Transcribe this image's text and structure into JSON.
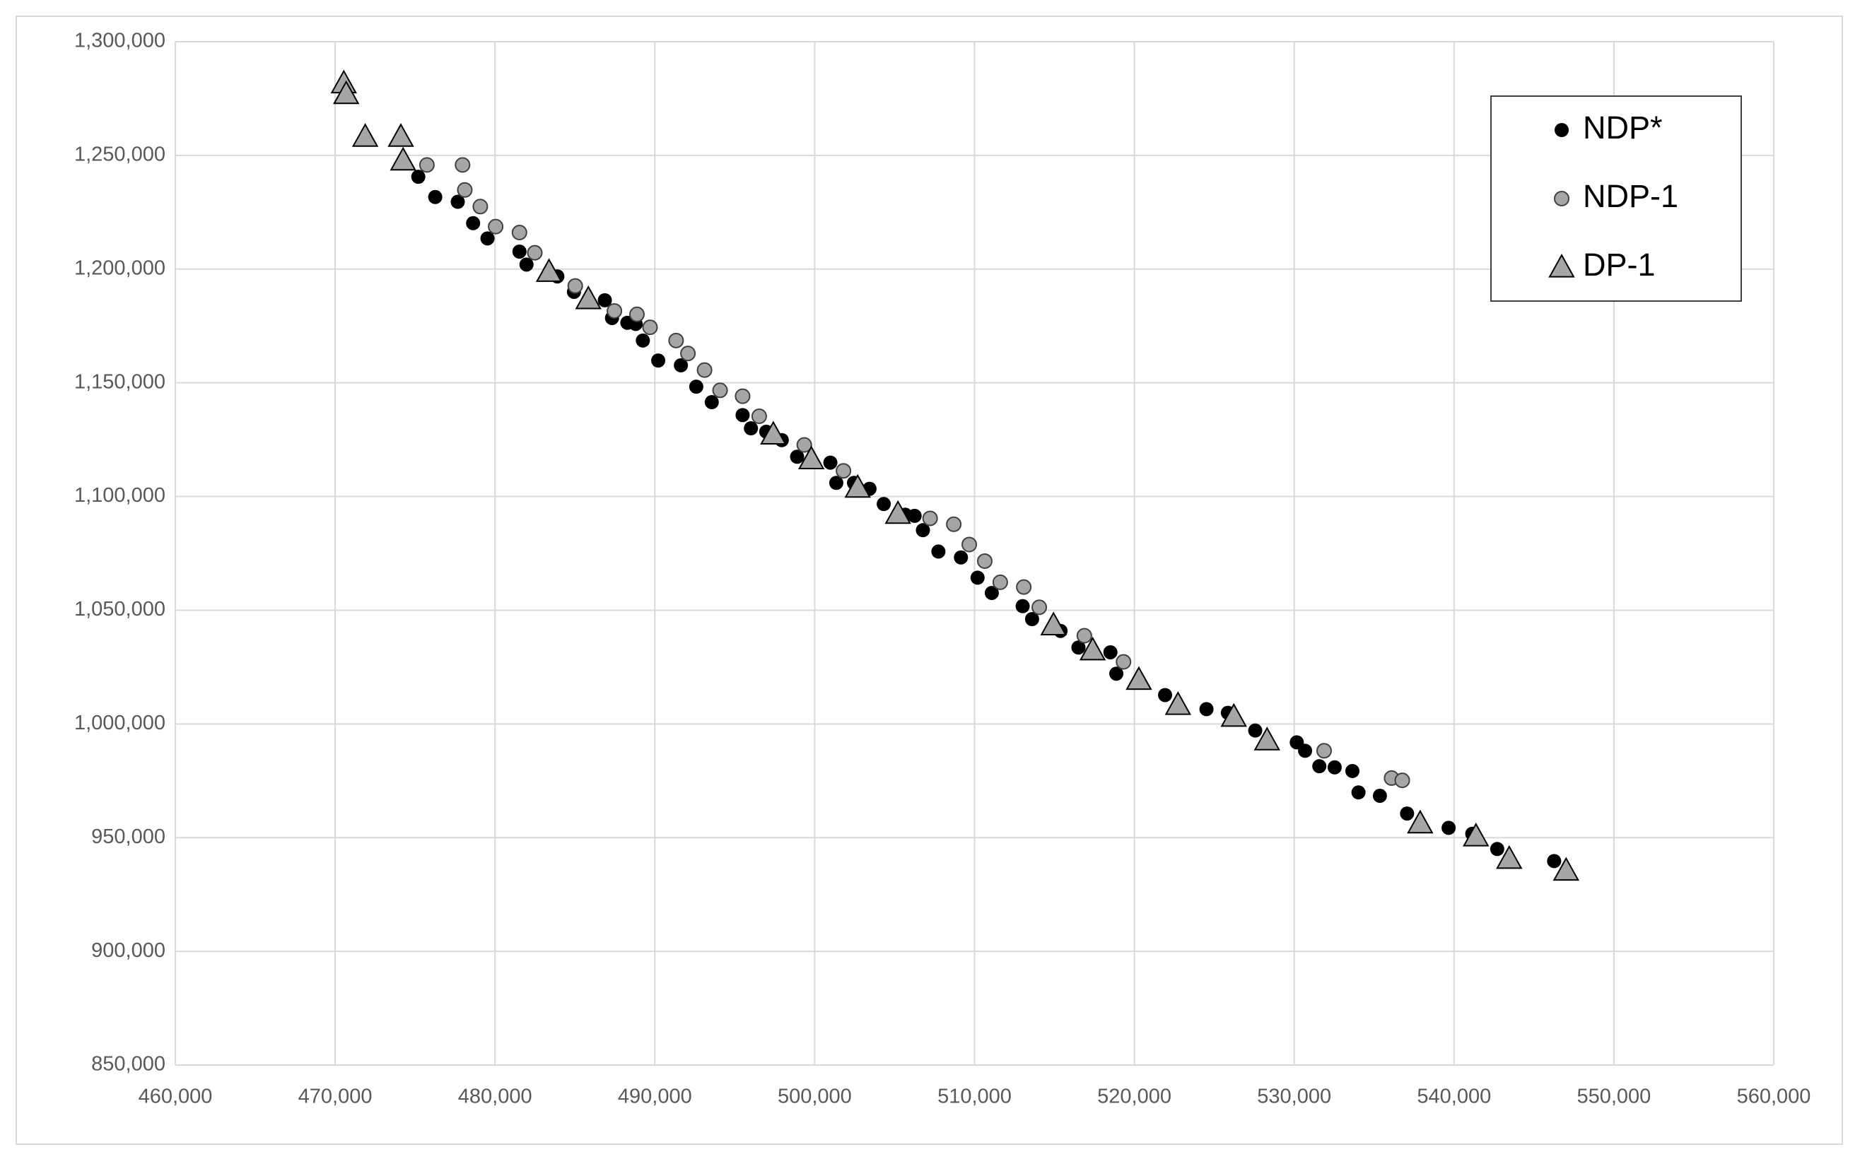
{
  "chart_data": {
    "type": "scatter",
    "xlim": [
      460000,
      560000
    ],
    "ylim": [
      850000,
      1300000
    ],
    "xticks": [
      {
        "value": 460000,
        "label": "460,000"
      },
      {
        "value": 470000,
        "label": "470,000"
      },
      {
        "value": 480000,
        "label": "480,000"
      },
      {
        "value": 490000,
        "label": "490,000"
      },
      {
        "value": 500000,
        "label": "500,000"
      },
      {
        "value": 510000,
        "label": "510,000"
      },
      {
        "value": 520000,
        "label": "520,000"
      },
      {
        "value": 530000,
        "label": "530,000"
      },
      {
        "value": 540000,
        "label": "540,000"
      },
      {
        "value": 550000,
        "label": "550,000"
      },
      {
        "value": 560000,
        "label": "560,000"
      }
    ],
    "yticks": [
      {
        "value": 850000,
        "label": "850,000"
      },
      {
        "value": 900000,
        "label": "900,000"
      },
      {
        "value": 950000,
        "label": "950,000"
      },
      {
        "value": 1000000,
        "label": "1,000,000"
      },
      {
        "value": 1050000,
        "label": "1,050,000"
      },
      {
        "value": 1100000,
        "label": "1,100,000"
      },
      {
        "value": 1150000,
        "label": "1,150,000"
      },
      {
        "value": 1200000,
        "label": "1,200,000"
      },
      {
        "value": 1250000,
        "label": "1,250,000"
      },
      {
        "value": 1300000,
        "label": "1,300,000"
      }
    ],
    "grid": true,
    "legend": "upper right",
    "series": [
      {
        "name": "NDP*",
        "color": "#000000",
        "marker": "circle",
        "x": [
          475200,
          476260,
          477670,
          478630,
          479530,
          481530,
          481970,
          483900,
          484940,
          486870,
          487320,
          488280,
          488800,
          489250,
          490210,
          491630,
          492590,
          493560,
          495490,
          496010,
          496970,
          497940,
          498900,
          500980,
          501350,
          502460,
          503430,
          504320,
          505660,
          506250,
          506770,
          507740,
          509150,
          510190,
          511080,
          513010,
          513600,
          515380,
          516500,
          518500,
          518870,
          521920,
          524510,
          525850,
          527560,
          530160,
          530680,
          531570,
          532530,
          533640,
          534020,
          535360,
          537060,
          539660,
          541140,
          542700,
          546260
        ],
        "values": [
          1240600,
          1231700,
          1229600,
          1220200,
          1213500,
          1207700,
          1202000,
          1196800,
          1190000,
          1186300,
          1178500,
          1176400,
          1175900,
          1168600,
          1159800,
          1157700,
          1148300,
          1141500,
          1135800,
          1130000,
          1128500,
          1124800,
          1117500,
          1114900,
          1106000,
          1106000,
          1103400,
          1096700,
          1092000,
          1091500,
          1085200,
          1075800,
          1073200,
          1064300,
          1057600,
          1051800,
          1046100,
          1040900,
          1033600,
          1031500,
          1022100,
          1012700,
          1006500,
          1004900,
          997100,
          991900,
          988200,
          981400,
          980900,
          979300,
          969900,
          968400,
          960600,
          954300,
          951700,
          945000,
          939700
        ]
      },
      {
        "name": "NDP-1",
        "color": "#a6a6a6",
        "marker": "circle",
        "x": [
          475740,
          477970,
          478110,
          479080,
          480040,
          481530,
          482490,
          485020,
          487470,
          488880,
          489700,
          491330,
          492070,
          493110,
          494080,
          495490,
          496530,
          499350,
          501800,
          507220,
          508700,
          509670,
          510640,
          511610,
          513080,
          514050,
          516870,
          519320,
          531870,
          536090,
          536760
        ],
        "values": [
          1245800,
          1245800,
          1234800,
          1227500,
          1218700,
          1216100,
          1207200,
          1192600,
          1181600,
          1180100,
          1174400,
          1168600,
          1162900,
          1155600,
          1146700,
          1144100,
          1135300,
          1122700,
          1111300,
          1090400,
          1087800,
          1078900,
          1071600,
          1062300,
          1060200,
          1051300,
          1038800,
          1027300,
          988200,
          976200,
          975200
        ]
      },
      {
        "name": "DP-1",
        "color": "#a6a6a6",
        "marker": "triangle",
        "x": [
          470540,
          470690,
          471880,
          474110,
          474250,
          483380,
          485840,
          497410,
          499790,
          502690,
          505210,
          514940,
          517390,
          520280,
          522730,
          526220,
          528300,
          537880,
          541370,
          543450,
          547010
        ],
        "values": [
          1281800,
          1277100,
          1258300,
          1258300,
          1247900,
          1198900,
          1186900,
          1127400,
          1116500,
          1104000,
          1092500,
          1043500,
          1032500,
          1019500,
          1008500,
          1003300,
          992900,
          956400,
          950700,
          940800,
          935600
        ]
      }
    ]
  }
}
